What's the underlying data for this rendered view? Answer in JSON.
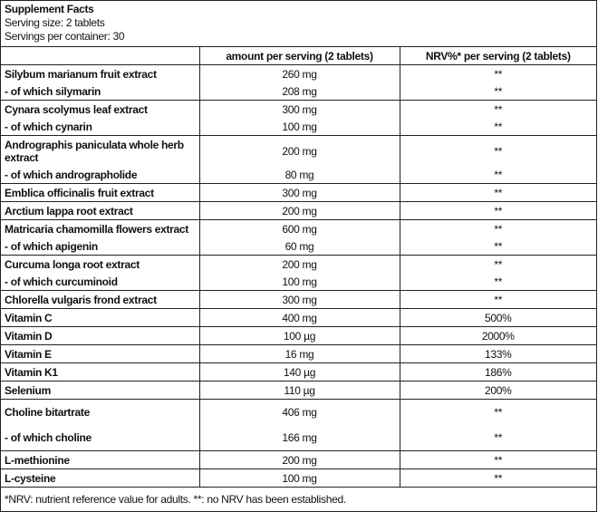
{
  "header": {
    "title": "Supplement Facts",
    "serving_size": "Serving size: 2 tablets",
    "servings_per_container": "Servings per container: 30"
  },
  "columns": [
    "",
    "amount per serving (2 tablets)",
    "NRV%* per serving (2 tablets)"
  ],
  "groups": [
    {
      "rows": [
        [
          "Silybum marianum fruit extract",
          "260 mg",
          "**"
        ],
        [
          "- of which silymarin",
          "208 mg",
          "**"
        ]
      ]
    },
    {
      "rows": [
        [
          "Cynara scolymus leaf extract",
          "300 mg",
          "**"
        ],
        [
          "- of which cynarin",
          "100 mg",
          "**"
        ]
      ]
    },
    {
      "rows": [
        [
          "Andrographis paniculata whole herb extract",
          "200 mg",
          "**"
        ],
        [
          "- of which andrographolide",
          "80 mg",
          "**"
        ]
      ]
    },
    {
      "rows": [
        [
          "Emblica officinalis fruit extract",
          "300 mg",
          "**"
        ]
      ]
    },
    {
      "rows": [
        [
          "Arctium lappa root extract",
          "200 mg",
          "**"
        ]
      ]
    },
    {
      "rows": [
        [
          "Matricaria chamomilla flowers extract",
          "600 mg",
          "**"
        ],
        [
          "- of which apigenin",
          "60 mg",
          "**"
        ]
      ]
    },
    {
      "rows": [
        [
          "Curcuma longa root extract",
          "200 mg",
          "**"
        ],
        [
          "- of which curcuminoid",
          "100 mg",
          "**"
        ]
      ]
    },
    {
      "rows": [
        [
          "Chlorella vulgaris frond extract",
          "300 mg",
          "**"
        ]
      ]
    },
    {
      "rows": [
        [
          "Vitamin C",
          "400 mg",
          "500%"
        ]
      ]
    },
    {
      "rows": [
        [
          "Vitamin D",
          "100 µg",
          "2000%"
        ]
      ]
    },
    {
      "rows": [
        [
          "Vitamin E",
          "16 mg",
          "133%"
        ]
      ]
    },
    {
      "rows": [
        [
          "Vitamin K1",
          "140 µg",
          "186%"
        ]
      ]
    },
    {
      "rows": [
        [
          "Selenium",
          "110 µg",
          "200%"
        ]
      ]
    },
    {
      "rows": [
        [
          "Choline bitartrate",
          "406 mg",
          "**"
        ],
        [
          "- of which choline",
          "166 mg",
          "**"
        ]
      ]
    },
    {
      "rows": [
        [
          "L-methionine",
          "200 mg",
          "**"
        ]
      ]
    },
    {
      "rows": [
        [
          "L-cysteine",
          "100 mg",
          "**"
        ]
      ]
    }
  ],
  "footnote": "*NRV: nutrient reference value for adults. **: no NRV has been established."
}
